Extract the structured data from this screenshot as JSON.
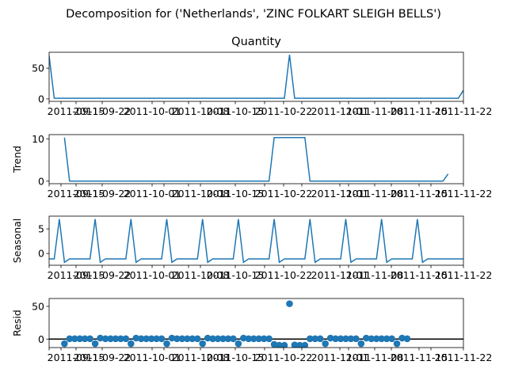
{
  "suptitle": "Decomposition for ('Netherlands', 'ZINC FOLKART SLEIGH BELLS')",
  "chart_data": [
    {
      "type": "line",
      "title": "Quantity",
      "ylabel": "",
      "xlim": [
        "2011-09-05",
        "2011-11-25"
      ],
      "ylim": [
        -4,
        76
      ],
      "yticks": [
        0,
        50
      ],
      "x_tick_labels": [
        "2011-09-15",
        "2011-09-22",
        "2011-10-01",
        "2011-10-08",
        "2011-10-15",
        "2011-10-22",
        "2011-11-01",
        "2011-11-08",
        "2011-11-15",
        "2011-11-22"
      ],
      "series": [
        {
          "values": [
            [
              "2011-09-05",
              70
            ],
            [
              "2011-09-06",
              1
            ],
            [
              "2011-10-21",
              1
            ],
            [
              "2011-10-22",
              72
            ],
            [
              "2011-10-23",
              1
            ],
            [
              "2011-11-24",
              1
            ],
            [
              "2011-11-25",
              14
            ]
          ]
        }
      ]
    },
    {
      "type": "line",
      "title": "",
      "ylabel": "Trend",
      "xlim": [
        "2011-09-05",
        "2011-11-25"
      ],
      "ylim": [
        -0.6,
        11
      ],
      "yticks": [
        0,
        10
      ],
      "x_tick_labels": [
        "2011-09-15",
        "2011-09-22",
        "2011-10-01",
        "2011-10-08",
        "2011-10-15",
        "2011-10-22",
        "2011-11-01",
        "2011-11-08",
        "2011-11-15",
        "2011-11-22"
      ],
      "series": [
        {
          "values": [
            [
              "2011-09-08",
              10.3
            ],
            [
              "2011-09-09",
              0
            ],
            [
              "2011-10-18",
              0
            ],
            [
              "2011-10-19",
              10.3
            ],
            [
              "2011-10-25",
              10.3
            ],
            [
              "2011-10-26",
              0
            ],
            [
              "2011-11-21",
              0
            ],
            [
              "2011-11-22",
              1.7
            ]
          ]
        }
      ]
    },
    {
      "type": "line",
      "title": "",
      "ylabel": "Seasonal",
      "xlim": [
        "2011-09-05",
        "2011-11-25"
      ],
      "ylim": [
        -2.4,
        7.6
      ],
      "yticks": [
        0,
        5
      ],
      "x_tick_labels": [
        "2011-09-15",
        "2011-09-22",
        "2011-10-01",
        "2011-10-08",
        "2011-10-15",
        "2011-10-22",
        "2011-11-01",
        "2011-11-08",
        "2011-11-15",
        "2011-11-22"
      ],
      "series": [
        {
          "values": [
            [
              "2011-09-05",
              -1.1
            ],
            [
              "2011-09-06",
              -1.1
            ],
            [
              "2011-09-07",
              7
            ],
            [
              "2011-09-08",
              -1.8
            ],
            [
              "2011-09-09",
              -1.1
            ],
            [
              "2011-09-13",
              -1.1
            ],
            [
              "2011-09-14",
              7
            ],
            [
              "2011-09-15",
              -1.8
            ],
            [
              "2011-09-16",
              -1.1
            ],
            [
              "2011-09-20",
              -1.1
            ],
            [
              "2011-09-21",
              7
            ],
            [
              "2011-09-22",
              -1.8
            ],
            [
              "2011-09-23",
              -1.1
            ],
            [
              "2011-09-27",
              -1.1
            ],
            [
              "2011-09-28",
              7
            ],
            [
              "2011-09-29",
              -1.8
            ],
            [
              "2011-09-30",
              -1.1
            ],
            [
              "2011-10-04",
              -1.1
            ],
            [
              "2011-10-05",
              7
            ],
            [
              "2011-10-06",
              -1.8
            ],
            [
              "2011-10-07",
              -1.1
            ],
            [
              "2011-10-11",
              -1.1
            ],
            [
              "2011-10-12",
              7
            ],
            [
              "2011-10-13",
              -1.8
            ],
            [
              "2011-10-14",
              -1.1
            ],
            [
              "2011-10-18",
              -1.1
            ],
            [
              "2011-10-19",
              7
            ],
            [
              "2011-10-20",
              -1.8
            ],
            [
              "2011-10-21",
              -1.1
            ],
            [
              "2011-10-25",
              -1.1
            ],
            [
              "2011-10-26",
              7
            ],
            [
              "2011-10-27",
              -1.8
            ],
            [
              "2011-10-28",
              -1.1
            ],
            [
              "2011-11-01",
              -1.1
            ],
            [
              "2011-11-02",
              7
            ],
            [
              "2011-11-03",
              -1.8
            ],
            [
              "2011-11-04",
              -1.1
            ],
            [
              "2011-11-08",
              -1.1
            ],
            [
              "2011-11-09",
              7
            ],
            [
              "2011-11-10",
              -1.8
            ],
            [
              "2011-11-11",
              -1.1
            ],
            [
              "2011-11-15",
              -1.1
            ],
            [
              "2011-11-16",
              7
            ],
            [
              "2011-11-17",
              -1.8
            ],
            [
              "2011-11-18",
              -1.1
            ],
            [
              "2011-11-25",
              -1.1
            ]
          ]
        }
      ]
    },
    {
      "type": "scatter",
      "title": "",
      "ylabel": "Resid",
      "xlim": [
        "2011-09-05",
        "2011-11-25"
      ],
      "ylim": [
        -13,
        62
      ],
      "yticks": [
        0,
        50
      ],
      "x_tick_labels": [
        "2011-09-15",
        "2011-09-22",
        "2011-10-01",
        "2011-10-08",
        "2011-10-15",
        "2011-10-22",
        "2011-11-01",
        "2011-11-08",
        "2011-11-15",
        "2011-11-22"
      ],
      "baseline": 0,
      "series": [
        {
          "values": [
            [
              "2011-09-08",
              -7
            ],
            [
              "2011-09-09",
              0.5
            ],
            [
              "2011-09-10",
              0.5
            ],
            [
              "2011-09-11",
              0.5
            ],
            [
              "2011-09-12",
              0.5
            ],
            [
              "2011-09-13",
              0.5
            ],
            [
              "2011-09-14",
              -7
            ],
            [
              "2011-09-15",
              1.5
            ],
            [
              "2011-09-16",
              0.5
            ],
            [
              "2011-09-17",
              0.5
            ],
            [
              "2011-09-18",
              0.5
            ],
            [
              "2011-09-19",
              0.5
            ],
            [
              "2011-09-20",
              0.5
            ],
            [
              "2011-09-21",
              -7
            ],
            [
              "2011-09-22",
              1.5
            ],
            [
              "2011-09-23",
              0.5
            ],
            [
              "2011-09-24",
              0.5
            ],
            [
              "2011-09-25",
              0.5
            ],
            [
              "2011-09-26",
              0.5
            ],
            [
              "2011-09-27",
              0.5
            ],
            [
              "2011-09-28",
              -7
            ],
            [
              "2011-09-29",
              1.5
            ],
            [
              "2011-09-30",
              0.5
            ],
            [
              "2011-10-01",
              0.5
            ],
            [
              "2011-10-02",
              0.5
            ],
            [
              "2011-10-03",
              0.5
            ],
            [
              "2011-10-04",
              0.5
            ],
            [
              "2011-10-05",
              -7
            ],
            [
              "2011-10-06",
              1.5
            ],
            [
              "2011-10-07",
              0.5
            ],
            [
              "2011-10-08",
              0.5
            ],
            [
              "2011-10-09",
              0.5
            ],
            [
              "2011-10-10",
              0.5
            ],
            [
              "2011-10-11",
              0.5
            ],
            [
              "2011-10-12",
              -7
            ],
            [
              "2011-10-13",
              1.5
            ],
            [
              "2011-10-14",
              0.5
            ],
            [
              "2011-10-15",
              0.5
            ],
            [
              "2011-10-16",
              0.5
            ],
            [
              "2011-10-17",
              0.5
            ],
            [
              "2011-10-18",
              0.5
            ],
            [
              "2011-10-19",
              -8
            ],
            [
              "2011-10-20",
              -9.5
            ],
            [
              "2011-10-21",
              -9.5
            ],
            [
              "2011-10-22",
              54
            ],
            [
              "2011-10-23",
              -9
            ],
            [
              "2011-10-24",
              -9.5
            ],
            [
              "2011-10-25",
              -9.5
            ],
            [
              "2011-10-26",
              0.5
            ],
            [
              "2011-10-27",
              0.5
            ],
            [
              "2011-10-28",
              0.5
            ],
            [
              "2011-10-29",
              -7
            ],
            [
              "2011-10-30",
              1.5
            ],
            [
              "2011-10-31",
              0.5
            ],
            [
              "2011-11-01",
              0.5
            ],
            [
              "2011-11-02",
              0.5
            ],
            [
              "2011-11-03",
              0.5
            ],
            [
              "2011-11-04",
              0.5
            ],
            [
              "2011-11-05",
              -7
            ],
            [
              "2011-11-06",
              1.5
            ],
            [
              "2011-11-07",
              0.5
            ],
            [
              "2011-11-08",
              0.5
            ],
            [
              "2011-11-09",
              0.5
            ],
            [
              "2011-11-10",
              0.5
            ],
            [
              "2011-11-11",
              0.5
            ],
            [
              "2011-11-12",
              -7
            ],
            [
              "2011-11-13",
              1.5
            ],
            [
              "2011-11-14",
              0.5
            ]
          ]
        }
      ]
    }
  ]
}
